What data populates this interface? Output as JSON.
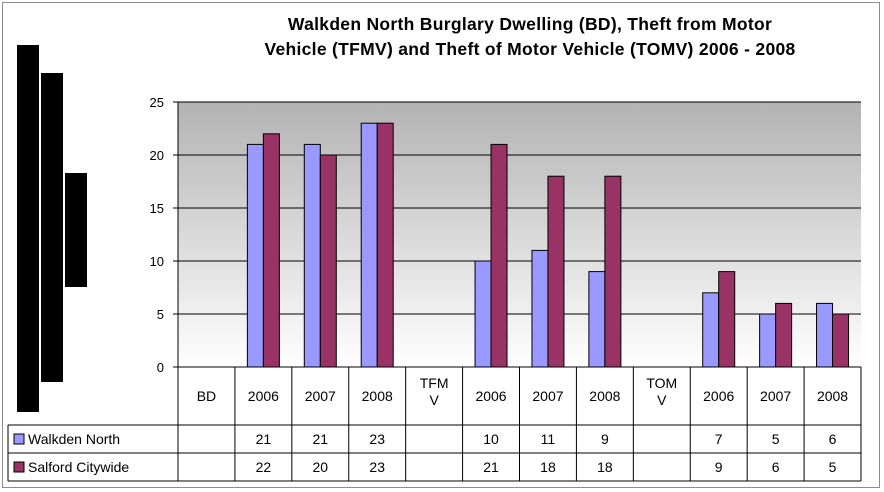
{
  "chart_data": {
    "type": "bar",
    "title": "Walkden North Burglary Dwelling (BD), Theft from Motor\nVehicle (TFMV) and Theft of Motor  Vehicle (TOMV) 2006 - 2008",
    "categories": [
      "BD",
      "2006",
      "2007",
      "2008",
      "TFMV",
      "2006",
      "2007",
      "2008",
      "TOMV",
      "2006",
      "2007",
      "2008"
    ],
    "series": [
      {
        "name": "Walkden North",
        "values": [
          null,
          21,
          21,
          23,
          null,
          10,
          11,
          9,
          null,
          7,
          5,
          6
        ],
        "color": "#9999ff"
      },
      {
        "name": "Salford Citywide",
        "values": [
          null,
          22,
          20,
          23,
          null,
          21,
          18,
          18,
          null,
          9,
          6,
          5
        ],
        "color": "#993366"
      }
    ],
    "ylim": [
      0,
      25
    ],
    "yticks": [
      0,
      5,
      10,
      15,
      20,
      25
    ],
    "grid": true,
    "legend": "data-table",
    "plot_background": "gradient grey to white"
  }
}
